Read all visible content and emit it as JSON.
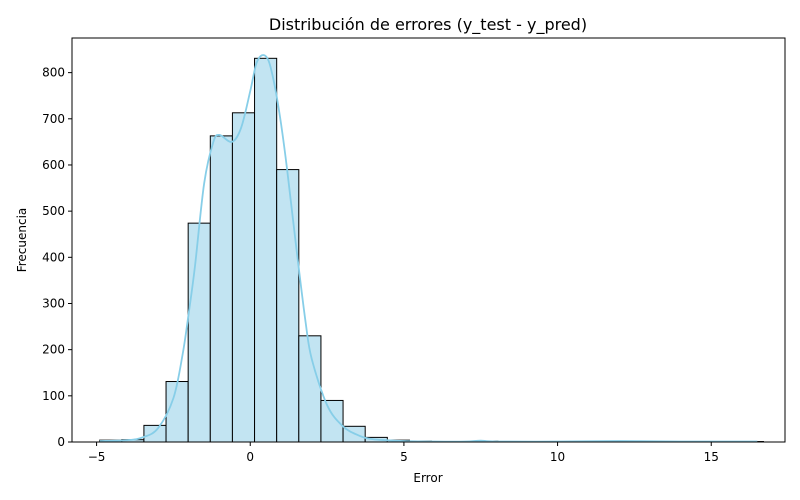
{
  "chart_data": {
    "type": "bar",
    "title": "Distribución de errores (y_test - y_pred)",
    "xlabel": "Error",
    "ylabel": "Frecuencia",
    "xlim": [
      -5.8,
      17.4
    ],
    "ylim": [
      0,
      875
    ],
    "xticks": [
      -5,
      0,
      5,
      10,
      15
    ],
    "yticks": [
      0,
      100,
      200,
      300,
      400,
      500,
      600,
      700,
      800
    ],
    "bin_edges": [
      -4.9,
      -4.18,
      -3.46,
      -2.74,
      -2.02,
      -1.3,
      -0.58,
      0.14,
      0.86,
      1.58,
      2.3,
      3.02,
      3.74,
      4.46,
      5.18,
      5.9,
      6.62,
      7.34,
      8.06,
      8.78,
      9.5,
      10.22,
      10.94,
      11.66,
      12.38,
      13.1,
      13.82,
      14.54,
      15.26,
      15.98,
      16.7
    ],
    "counts": [
      4,
      5,
      36,
      131,
      474,
      663,
      713,
      831,
      590,
      230,
      90,
      34,
      10,
      4,
      2,
      1,
      1,
      2,
      1,
      1,
      1,
      1,
      1,
      1,
      1,
      1,
      1,
      1,
      1,
      1
    ],
    "kde": {
      "x": [
        -4.9,
        -4.0,
        -3.5,
        -3.0,
        -2.5,
        -2.2,
        -2.0,
        -1.8,
        -1.5,
        -1.2,
        -1.0,
        -0.6,
        -0.3,
        0.0,
        0.2,
        0.4,
        0.6,
        0.8,
        1.0,
        1.2,
        1.5,
        1.8,
        2.0,
        2.5,
        3.0,
        3.5,
        4.0,
        5.0,
        6.0,
        7.0,
        7.5,
        8.0,
        10.0,
        12.0,
        14.0,
        16.5
      ],
      "y": [
        2,
        4,
        10,
        30,
        95,
        190,
        280,
        380,
        560,
        650,
        665,
        650,
        680,
        760,
        820,
        838,
        825,
        770,
        690,
        590,
        420,
        260,
        180,
        80,
        35,
        15,
        6,
        2,
        1,
        1,
        3,
        1,
        1,
        2,
        1,
        1
      ]
    },
    "bar_color": "#c2e4f2",
    "bar_edge_color": "#000000",
    "kde_color": "#87cee8",
    "grid": false,
    "legend": "none"
  }
}
